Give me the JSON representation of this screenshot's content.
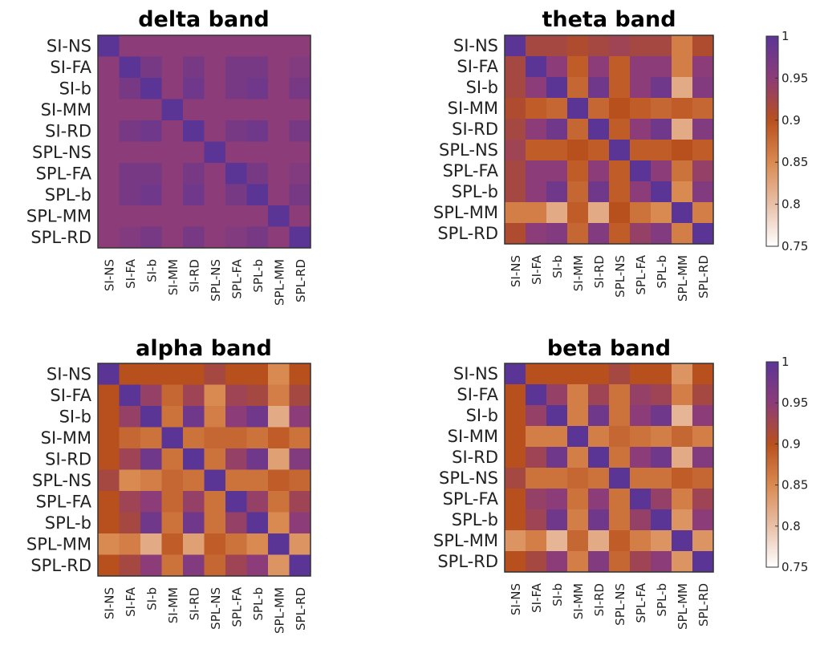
{
  "chart_data": [
    {
      "type": "heatmap",
      "title": "delta band",
      "labels": [
        "SI-NS",
        "SI-FA",
        "SI-b",
        "SI-MM",
        "SI-RD",
        "SPL-NS",
        "SPL-FA",
        "SPL-b",
        "SPL-MM",
        "SPL-RD"
      ],
      "clim": [
        0.75,
        1
      ],
      "values": [
        [
          1.0,
          0.95,
          0.95,
          0.95,
          0.95,
          0.95,
          0.95,
          0.95,
          0.95,
          0.95
        ],
        [
          0.95,
          1.0,
          0.97,
          0.95,
          0.97,
          0.95,
          0.97,
          0.97,
          0.95,
          0.96
        ],
        [
          0.95,
          0.97,
          1.0,
          0.95,
          0.98,
          0.95,
          0.97,
          0.98,
          0.95,
          0.97
        ],
        [
          0.95,
          0.95,
          0.95,
          1.0,
          0.95,
          0.95,
          0.95,
          0.95,
          0.95,
          0.95
        ],
        [
          0.95,
          0.97,
          0.98,
          0.95,
          1.0,
          0.95,
          0.97,
          0.98,
          0.95,
          0.97
        ],
        [
          0.95,
          0.95,
          0.95,
          0.95,
          0.95,
          1.0,
          0.95,
          0.95,
          0.95,
          0.95
        ],
        [
          0.95,
          0.97,
          0.97,
          0.95,
          0.97,
          0.95,
          1.0,
          0.97,
          0.95,
          0.96
        ],
        [
          0.95,
          0.97,
          0.98,
          0.95,
          0.98,
          0.95,
          0.97,
          1.0,
          0.95,
          0.97
        ],
        [
          0.95,
          0.95,
          0.95,
          0.95,
          0.95,
          0.95,
          0.95,
          0.95,
          1.0,
          0.95
        ],
        [
          0.95,
          0.96,
          0.97,
          0.95,
          0.97,
          0.95,
          0.96,
          0.97,
          0.95,
          1.0
        ]
      ]
    },
    {
      "type": "heatmap",
      "title": "theta band",
      "labels": [
        "SI-NS",
        "SI-FA",
        "SI-b",
        "SI-MM",
        "SI-RD",
        "SPL-NS",
        "SPL-FA",
        "SPL-b",
        "SPL-MM",
        "SPL-RD"
      ],
      "clim": [
        0.75,
        1
      ],
      "colorbar": {
        "ticks": [
          1,
          0.95,
          0.9,
          0.85,
          0.8,
          0.75
        ]
      },
      "values": [
        [
          1.0,
          0.92,
          0.92,
          0.91,
          0.92,
          0.93,
          0.92,
          0.92,
          0.86,
          0.91
        ],
        [
          0.92,
          1.0,
          0.95,
          0.89,
          0.95,
          0.89,
          0.95,
          0.95,
          0.86,
          0.95
        ],
        [
          0.92,
          0.95,
          1.0,
          0.88,
          0.98,
          0.89,
          0.95,
          0.98,
          0.82,
          0.96
        ],
        [
          0.91,
          0.89,
          0.88,
          1.0,
          0.88,
          0.9,
          0.89,
          0.88,
          0.89,
          0.88
        ],
        [
          0.92,
          0.95,
          0.98,
          0.88,
          1.0,
          0.89,
          0.95,
          0.98,
          0.82,
          0.96
        ],
        [
          0.93,
          0.89,
          0.89,
          0.9,
          0.89,
          1.0,
          0.89,
          0.89,
          0.9,
          0.89
        ],
        [
          0.92,
          0.95,
          0.95,
          0.89,
          0.95,
          0.89,
          1.0,
          0.95,
          0.87,
          0.94
        ],
        [
          0.92,
          0.95,
          0.98,
          0.88,
          0.98,
          0.89,
          0.95,
          1.0,
          0.85,
          0.96
        ],
        [
          0.86,
          0.86,
          0.82,
          0.89,
          0.82,
          0.9,
          0.87,
          0.85,
          1.0,
          0.86
        ],
        [
          0.91,
          0.95,
          0.96,
          0.88,
          0.96,
          0.89,
          0.94,
          0.96,
          0.86,
          1.0
        ]
      ]
    },
    {
      "type": "heatmap",
      "title": "alpha band",
      "labels": [
        "SI-NS",
        "SI-FA",
        "SI-b",
        "SI-MM",
        "SI-RD",
        "SPL-NS",
        "SPL-FA",
        "SPL-b",
        "SPL-MM",
        "SPL-RD"
      ],
      "clim": [
        0.75,
        1
      ],
      "values": [
        [
          1.0,
          0.9,
          0.9,
          0.9,
          0.9,
          0.92,
          0.9,
          0.9,
          0.85,
          0.9
        ],
        [
          0.9,
          1.0,
          0.94,
          0.88,
          0.93,
          0.85,
          0.93,
          0.92,
          0.86,
          0.92
        ],
        [
          0.9,
          0.94,
          1.0,
          0.87,
          0.98,
          0.86,
          0.95,
          0.98,
          0.82,
          0.95
        ],
        [
          0.9,
          0.88,
          0.87,
          1.0,
          0.87,
          0.88,
          0.88,
          0.87,
          0.89,
          0.87
        ],
        [
          0.9,
          0.93,
          0.98,
          0.87,
          1.0,
          0.87,
          0.94,
          0.98,
          0.83,
          0.96
        ],
        [
          0.92,
          0.85,
          0.86,
          0.88,
          0.87,
          1.0,
          0.87,
          0.87,
          0.89,
          0.88
        ],
        [
          0.9,
          0.93,
          0.95,
          0.88,
          0.94,
          0.87,
          1.0,
          0.94,
          0.87,
          0.93
        ],
        [
          0.9,
          0.92,
          0.98,
          0.87,
          0.98,
          0.87,
          0.94,
          1.0,
          0.85,
          0.95
        ],
        [
          0.85,
          0.86,
          0.82,
          0.89,
          0.83,
          0.89,
          0.87,
          0.85,
          1.0,
          0.84
        ],
        [
          0.9,
          0.92,
          0.95,
          0.87,
          0.96,
          0.88,
          0.93,
          0.95,
          0.84,
          1.0
        ]
      ]
    },
    {
      "type": "heatmap",
      "title": "beta band",
      "labels": [
        "SI-NS",
        "SI-FA",
        "SI-b",
        "SI-MM",
        "SI-RD",
        "SPL-NS",
        "SPL-FA",
        "SPL-b",
        "SPL-MM",
        "SPL-RD"
      ],
      "clim": [
        0.75,
        1
      ],
      "colorbar": {
        "ticks": [
          1,
          0.95,
          0.9,
          0.85,
          0.8,
          0.75
        ]
      },
      "values": [
        [
          1.0,
          0.9,
          0.9,
          0.9,
          0.9,
          0.92,
          0.9,
          0.9,
          0.84,
          0.9
        ],
        [
          0.9,
          1.0,
          0.94,
          0.86,
          0.93,
          0.87,
          0.94,
          0.93,
          0.86,
          0.92
        ],
        [
          0.9,
          0.94,
          1.0,
          0.86,
          0.98,
          0.87,
          0.95,
          0.98,
          0.81,
          0.95
        ],
        [
          0.9,
          0.86,
          0.86,
          1.0,
          0.86,
          0.88,
          0.87,
          0.86,
          0.88,
          0.86
        ],
        [
          0.9,
          0.93,
          0.98,
          0.86,
          1.0,
          0.87,
          0.95,
          0.98,
          0.82,
          0.96
        ],
        [
          0.92,
          0.87,
          0.87,
          0.88,
          0.87,
          1.0,
          0.87,
          0.87,
          0.89,
          0.88
        ],
        [
          0.9,
          0.94,
          0.95,
          0.87,
          0.95,
          0.87,
          1.0,
          0.94,
          0.86,
          0.93
        ],
        [
          0.9,
          0.93,
          0.98,
          0.86,
          0.98,
          0.87,
          0.94,
          1.0,
          0.84,
          0.95
        ],
        [
          0.84,
          0.86,
          0.81,
          0.88,
          0.82,
          0.89,
          0.86,
          0.84,
          1.0,
          0.84
        ],
        [
          0.9,
          0.92,
          0.95,
          0.86,
          0.96,
          0.88,
          0.93,
          0.95,
          0.84,
          1.0
        ]
      ]
    }
  ],
  "colormap": {
    "stops": [
      {
        "v": 0.75,
        "color": "#ffffff"
      },
      {
        "v": 0.8,
        "color": "#e8c0a8"
      },
      {
        "v": 0.85,
        "color": "#d98a50"
      },
      {
        "v": 0.9,
        "color": "#b8501e"
      },
      {
        "v": 0.95,
        "color": "#8c3c78"
      },
      {
        "v": 1.0,
        "color": "#5b3596"
      }
    ]
  }
}
